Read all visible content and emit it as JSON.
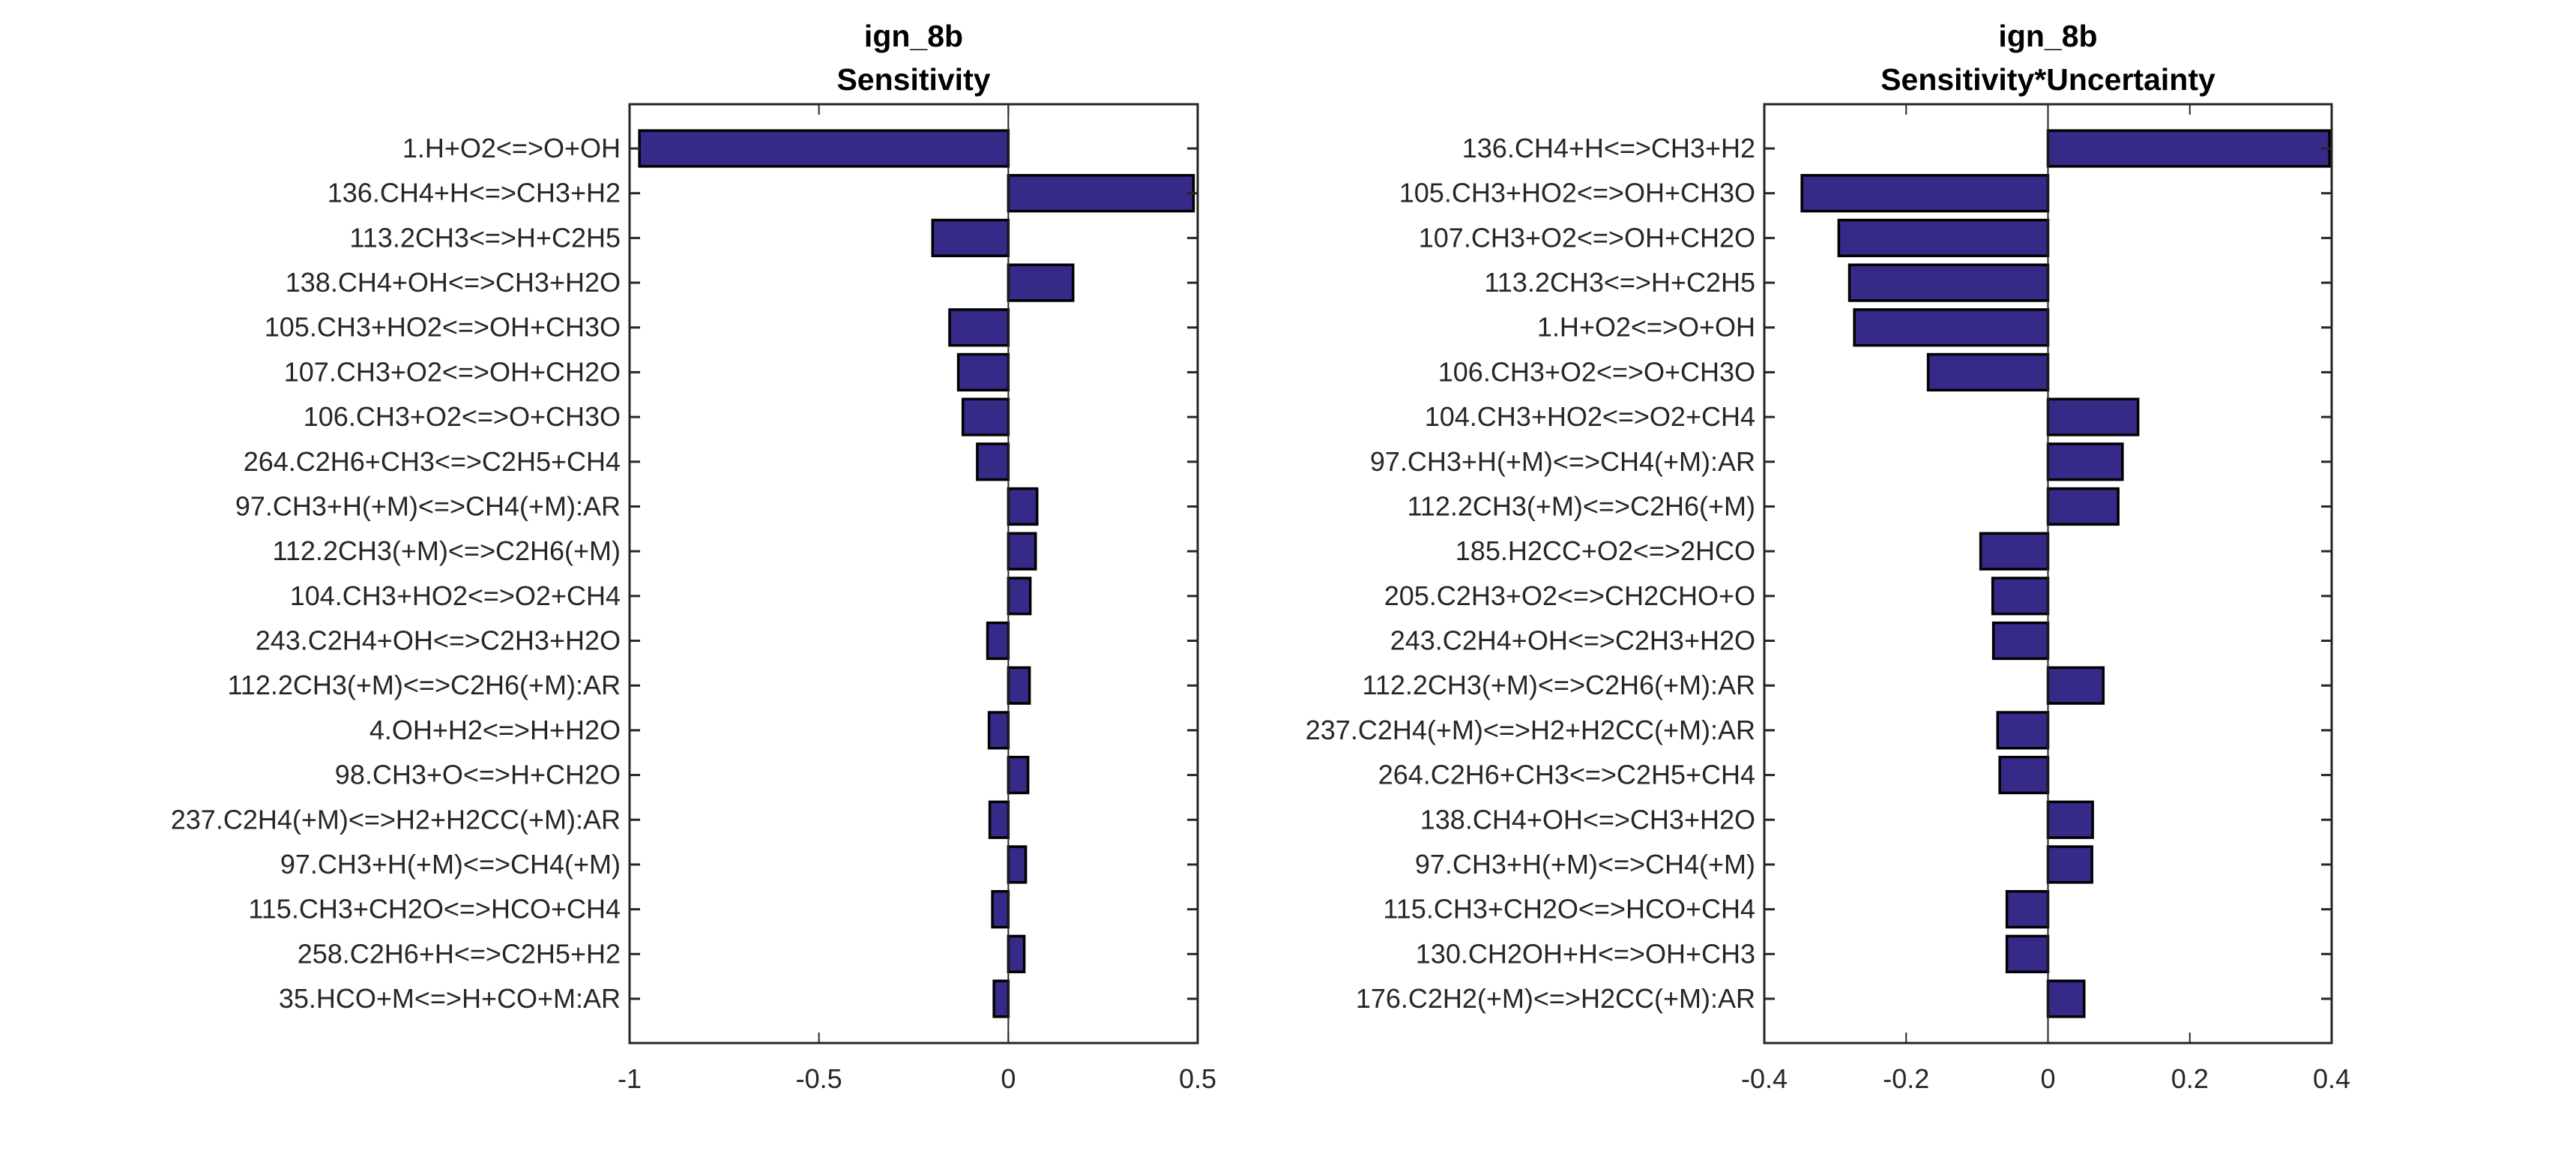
{
  "chart_data": [
    {
      "type": "bar",
      "orientation": "horizontal",
      "title": "ign_8b",
      "subtitle": "Sensitivity",
      "xlabel": "",
      "ylabel": "",
      "xlim": [
        -1,
        0.5
      ],
      "xticks": [
        -1,
        -0.5,
        0,
        0.5
      ],
      "xtick_labels": [
        "-1",
        "-0.5",
        "0",
        "0.5"
      ],
      "grid": false,
      "bar_color": "#352a87",
      "categories": [
        "1.H+O2<=>O+OH",
        "136.CH4+H<=>CH3+H2",
        "113.2CH3<=>H+C2H5",
        "138.CH4+OH<=>CH3+H2O",
        "105.CH3+HO2<=>OH+CH3O",
        "107.CH3+O2<=>OH+CH2O",
        "106.CH3+O2<=>O+CH3O",
        "264.C2H6+CH3<=>C2H5+CH4",
        "97.CH3+H(+M)<=>CH4(+M):AR",
        "112.2CH3(+M)<=>C2H6(+M)",
        "104.CH3+HO2<=>O2+CH4",
        "243.C2H4+OH<=>C2H3+H2O",
        "112.2CH3(+M)<=>C2H6(+M):AR",
        "4.OH+H2<=>H+H2O",
        "98.CH3+O<=>H+CH2O",
        "237.C2H4(+M)<=>H2+H2CC(+M):AR",
        "97.CH3+H(+M)<=>CH4(+M)",
        "115.CH3+CH2O<=>HCO+CH4",
        "258.C2H6+H<=>C2H5+H2",
        "35.HCO+M<=>H+CO+M:AR"
      ],
      "values": [
        -0.974,
        0.489,
        -0.2,
        0.171,
        -0.155,
        -0.132,
        -0.12,
        -0.082,
        0.076,
        0.072,
        0.058,
        -0.055,
        0.056,
        -0.051,
        0.052,
        -0.049,
        0.046,
        -0.042,
        0.042,
        -0.038
      ]
    },
    {
      "type": "bar",
      "orientation": "horizontal",
      "title": "ign_8b",
      "subtitle": "Sensitivity*Uncertainty",
      "xlabel": "",
      "ylabel": "",
      "xlim": [
        -0.4,
        0.4
      ],
      "xticks": [
        -0.4,
        -0.2,
        0,
        0.2,
        0.4
      ],
      "xtick_labels": [
        "-0.4",
        "-0.2",
        "0",
        "0.2",
        "0.4"
      ],
      "grid": false,
      "bar_color": "#352a87",
      "categories": [
        "136.CH4+H<=>CH3+H2",
        "105.CH3+HO2<=>OH+CH3O",
        "107.CH3+O2<=>OH+CH2O",
        "113.2CH3<=>H+C2H5",
        "1.H+O2<=>O+OH",
        "106.CH3+O2<=>O+CH3O",
        "104.CH3+HO2<=>O2+CH4",
        "97.CH3+H(+M)<=>CH4(+M):AR",
        "112.2CH3(+M)<=>C2H6(+M)",
        "185.H2CC+O2<=>2HCO",
        "205.C2H3+O2<=>CH2CHO+O",
        "243.C2H4+OH<=>C2H3+H2O",
        "112.2CH3(+M)<=>C2H6(+M):AR",
        "237.C2H4(+M)<=>H2+H2CC(+M):AR",
        "264.C2H6+CH3<=>C2H5+CH4",
        "138.CH4+OH<=>CH3+H2O",
        "97.CH3+H(+M)<=>CH4(+M)",
        "115.CH3+CH2O<=>HCO+CH4",
        "130.CH2OH+H<=>OH+CH3",
        "176.C2H2(+M)<=>H2CC(+M):AR"
      ],
      "values": [
        0.397,
        -0.347,
        -0.295,
        -0.28,
        -0.273,
        -0.169,
        0.127,
        0.105,
        0.099,
        -0.095,
        -0.078,
        -0.077,
        0.078,
        -0.071,
        -0.068,
        0.063,
        0.062,
        -0.058,
        -0.058,
        0.051
      ]
    }
  ]
}
